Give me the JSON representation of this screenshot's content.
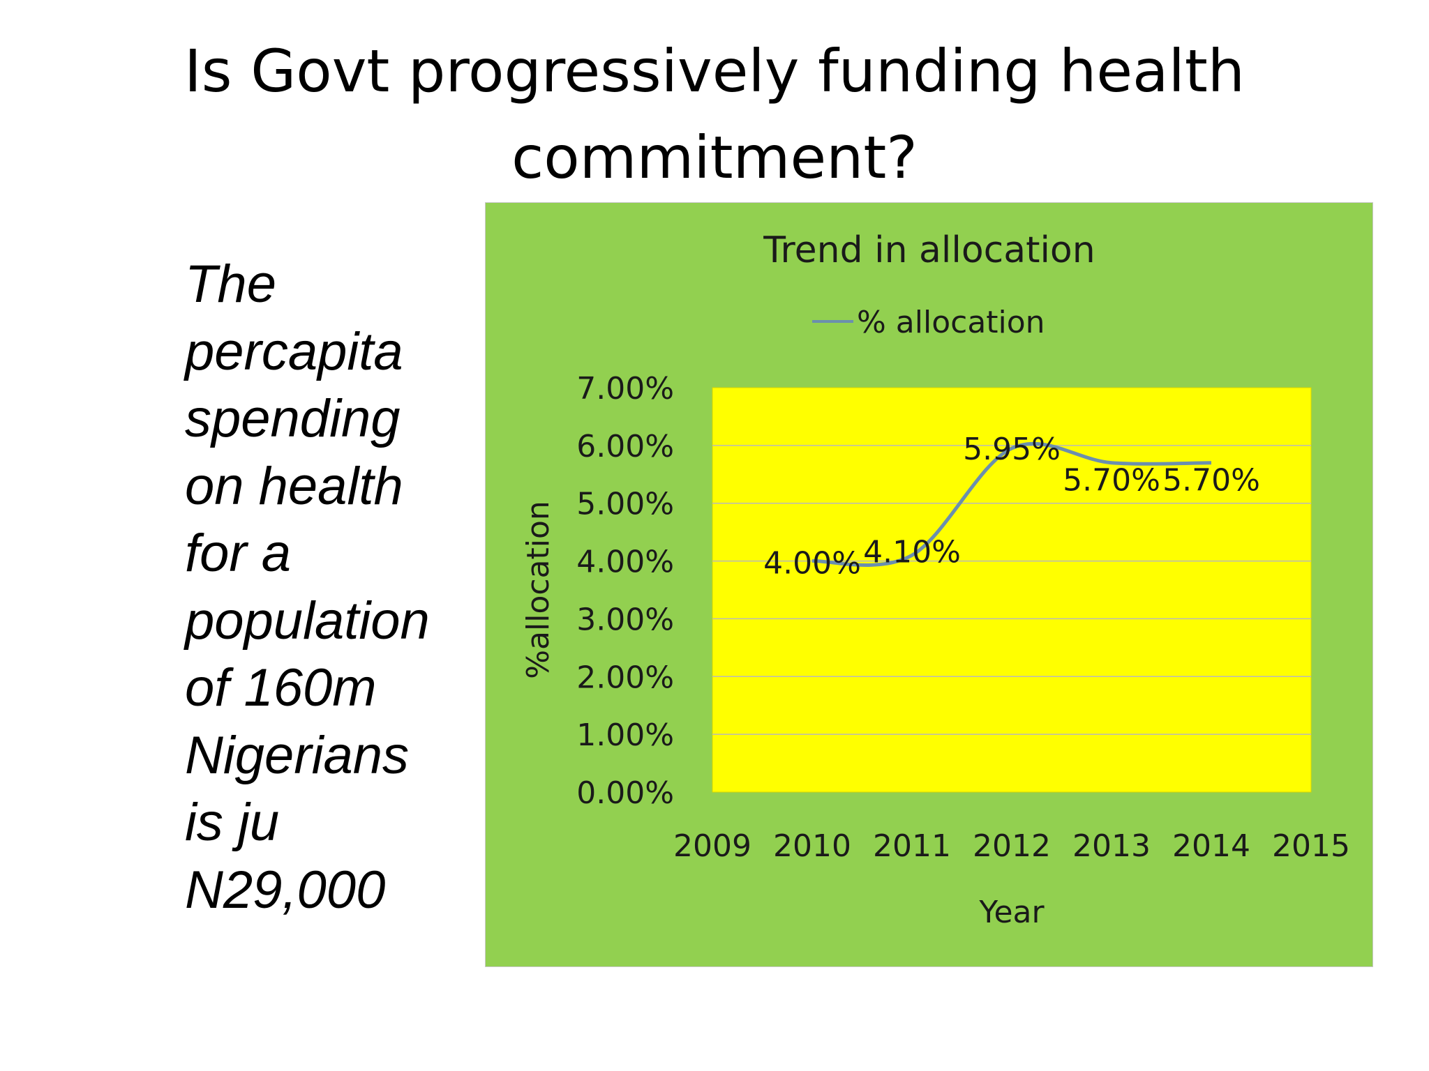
{
  "slide": {
    "title_line1": "Is Govt progressively funding health",
    "title_line2": "commitment?",
    "body_lines": [
      "The",
      "percapita",
      "spending",
      "on health",
      "for a",
      "population",
      "of 160m",
      "Nigerians",
      "is ju",
      "N29,000"
    ]
  },
  "chart_data": {
    "type": "line",
    "title": "Trend in allocation",
    "xlabel": "Year",
    "ylabel": "%allocation",
    "categories": [
      "2009",
      "2010",
      "2011",
      "2012",
      "2013",
      "2014",
      "2015"
    ],
    "series": [
      {
        "name": "% allocation",
        "x": [
          "2010",
          "2011",
          "2012",
          "2013",
          "2014"
        ],
        "values": [
          4.0,
          4.1,
          5.95,
          5.7,
          5.7
        ],
        "labels": [
          "4.00%",
          "4.10%",
          "5.95%",
          "5.70%",
          "5.70%"
        ]
      }
    ],
    "ylim": [
      0,
      7
    ],
    "yticks": [
      "0.00%",
      "1.00%",
      "2.00%",
      "3.00%",
      "4.00%",
      "5.00%",
      "6.00%",
      "7.00%"
    ],
    "grid": true,
    "smooth": true,
    "legend_position": "top",
    "colors": {
      "chart_bg": "#92d050",
      "plot_bg": "#ffff00",
      "line": "#6b8fae",
      "grid": "#b9b9b9"
    }
  }
}
